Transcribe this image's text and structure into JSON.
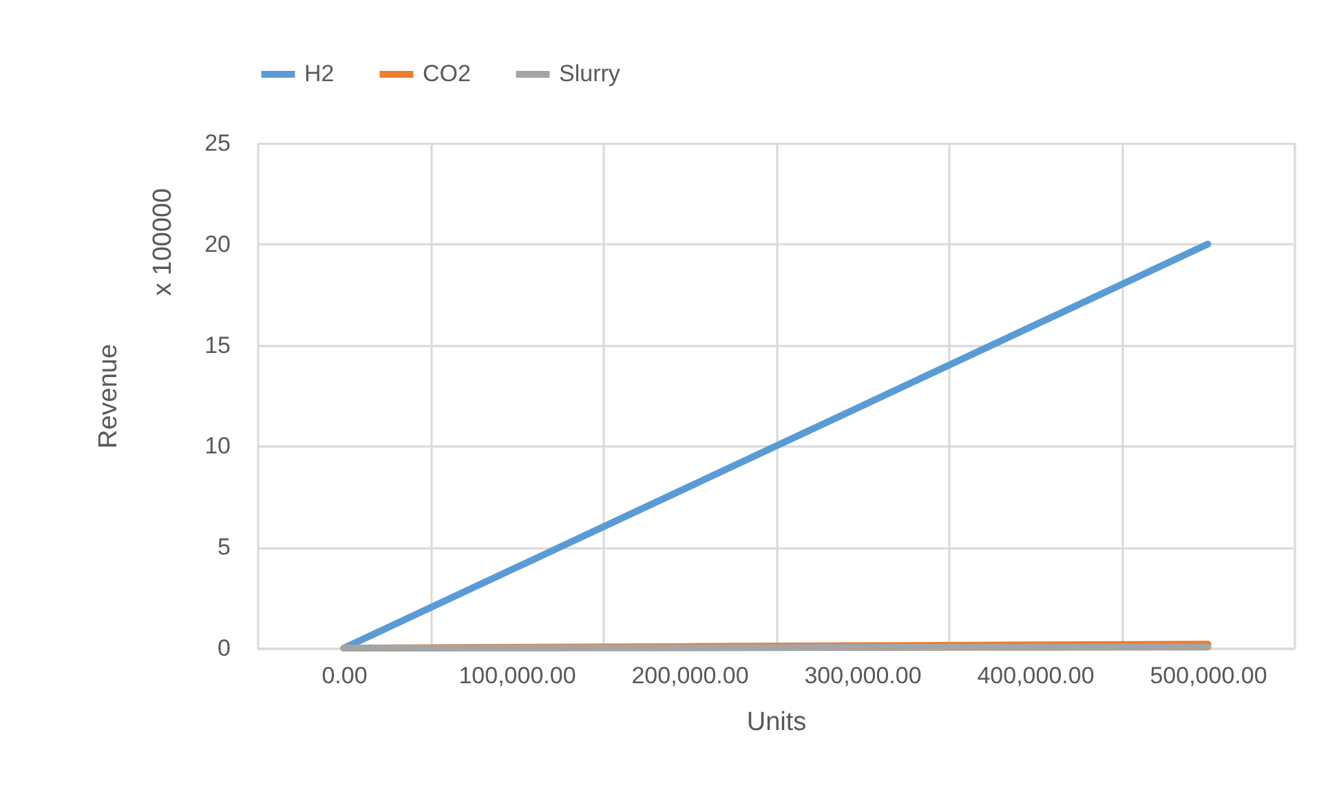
{
  "chart_data": {
    "type": "line",
    "xlabel": "Units",
    "ylabel": "Revenue",
    "annotations": [
      "x 100000"
    ],
    "categories": [
      "0.00",
      "100,000.00",
      "200,000.00",
      "300,000.00",
      "400,000.00",
      "500,000.00"
    ],
    "series": [
      {
        "name": "H2",
        "color": "#5b9bd5",
        "values": [
          0,
          4,
          8,
          12,
          16,
          20
        ]
      },
      {
        "name": "CO2",
        "color": "#ed7d31",
        "values": [
          0,
          0.04,
          0.08,
          0.12,
          0.16,
          0.2
        ]
      },
      {
        "name": "Slurry",
        "color": "#a5a5a5",
        "values": [
          0,
          0.01,
          0.02,
          0.03,
          0.04,
          0.05
        ]
      }
    ],
    "ylim": [
      0,
      25
    ],
    "yticks": [
      0,
      5,
      10,
      15,
      20,
      25
    ],
    "grid": true,
    "legend": "top",
    "marker": "none",
    "line_style": "solid"
  }
}
